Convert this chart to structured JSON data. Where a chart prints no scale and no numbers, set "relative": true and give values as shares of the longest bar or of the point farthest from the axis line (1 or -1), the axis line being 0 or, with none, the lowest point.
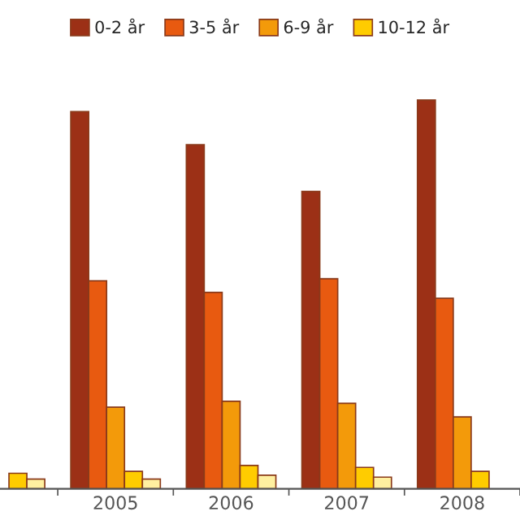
{
  "chart_data": {
    "type": "bar",
    "relative": true,
    "categories": [
      null,
      "2005",
      "2006",
      "2007",
      "2008"
    ],
    "series": [
      {
        "name": "0-2 år",
        "color": "#9c3016",
        "values": [
          null,
          0.97,
          0.885,
          0.765,
          1
        ]
      },
      {
        "name": "3-5 år",
        "color": "#e85a10",
        "values": [
          null,
          0.535,
          0.505,
          0.54,
          0.49
        ]
      },
      {
        "name": "6-9 år",
        "color": "#f39a0a",
        "values": [
          null,
          0.21,
          0.225,
          0.22,
          0.185
        ]
      },
      {
        "name": "10-12 år",
        "color": "#ffcc00",
        "values": [
          0.04,
          0.045,
          0.06,
          0.055,
          0.045
        ]
      },
      {
        "color": "#fff0a0",
        "values": [
          0.025,
          0.025,
          0.035,
          0.03,
          null
        ]
      }
    ],
    "legend": "top",
    "grid": false
  }
}
